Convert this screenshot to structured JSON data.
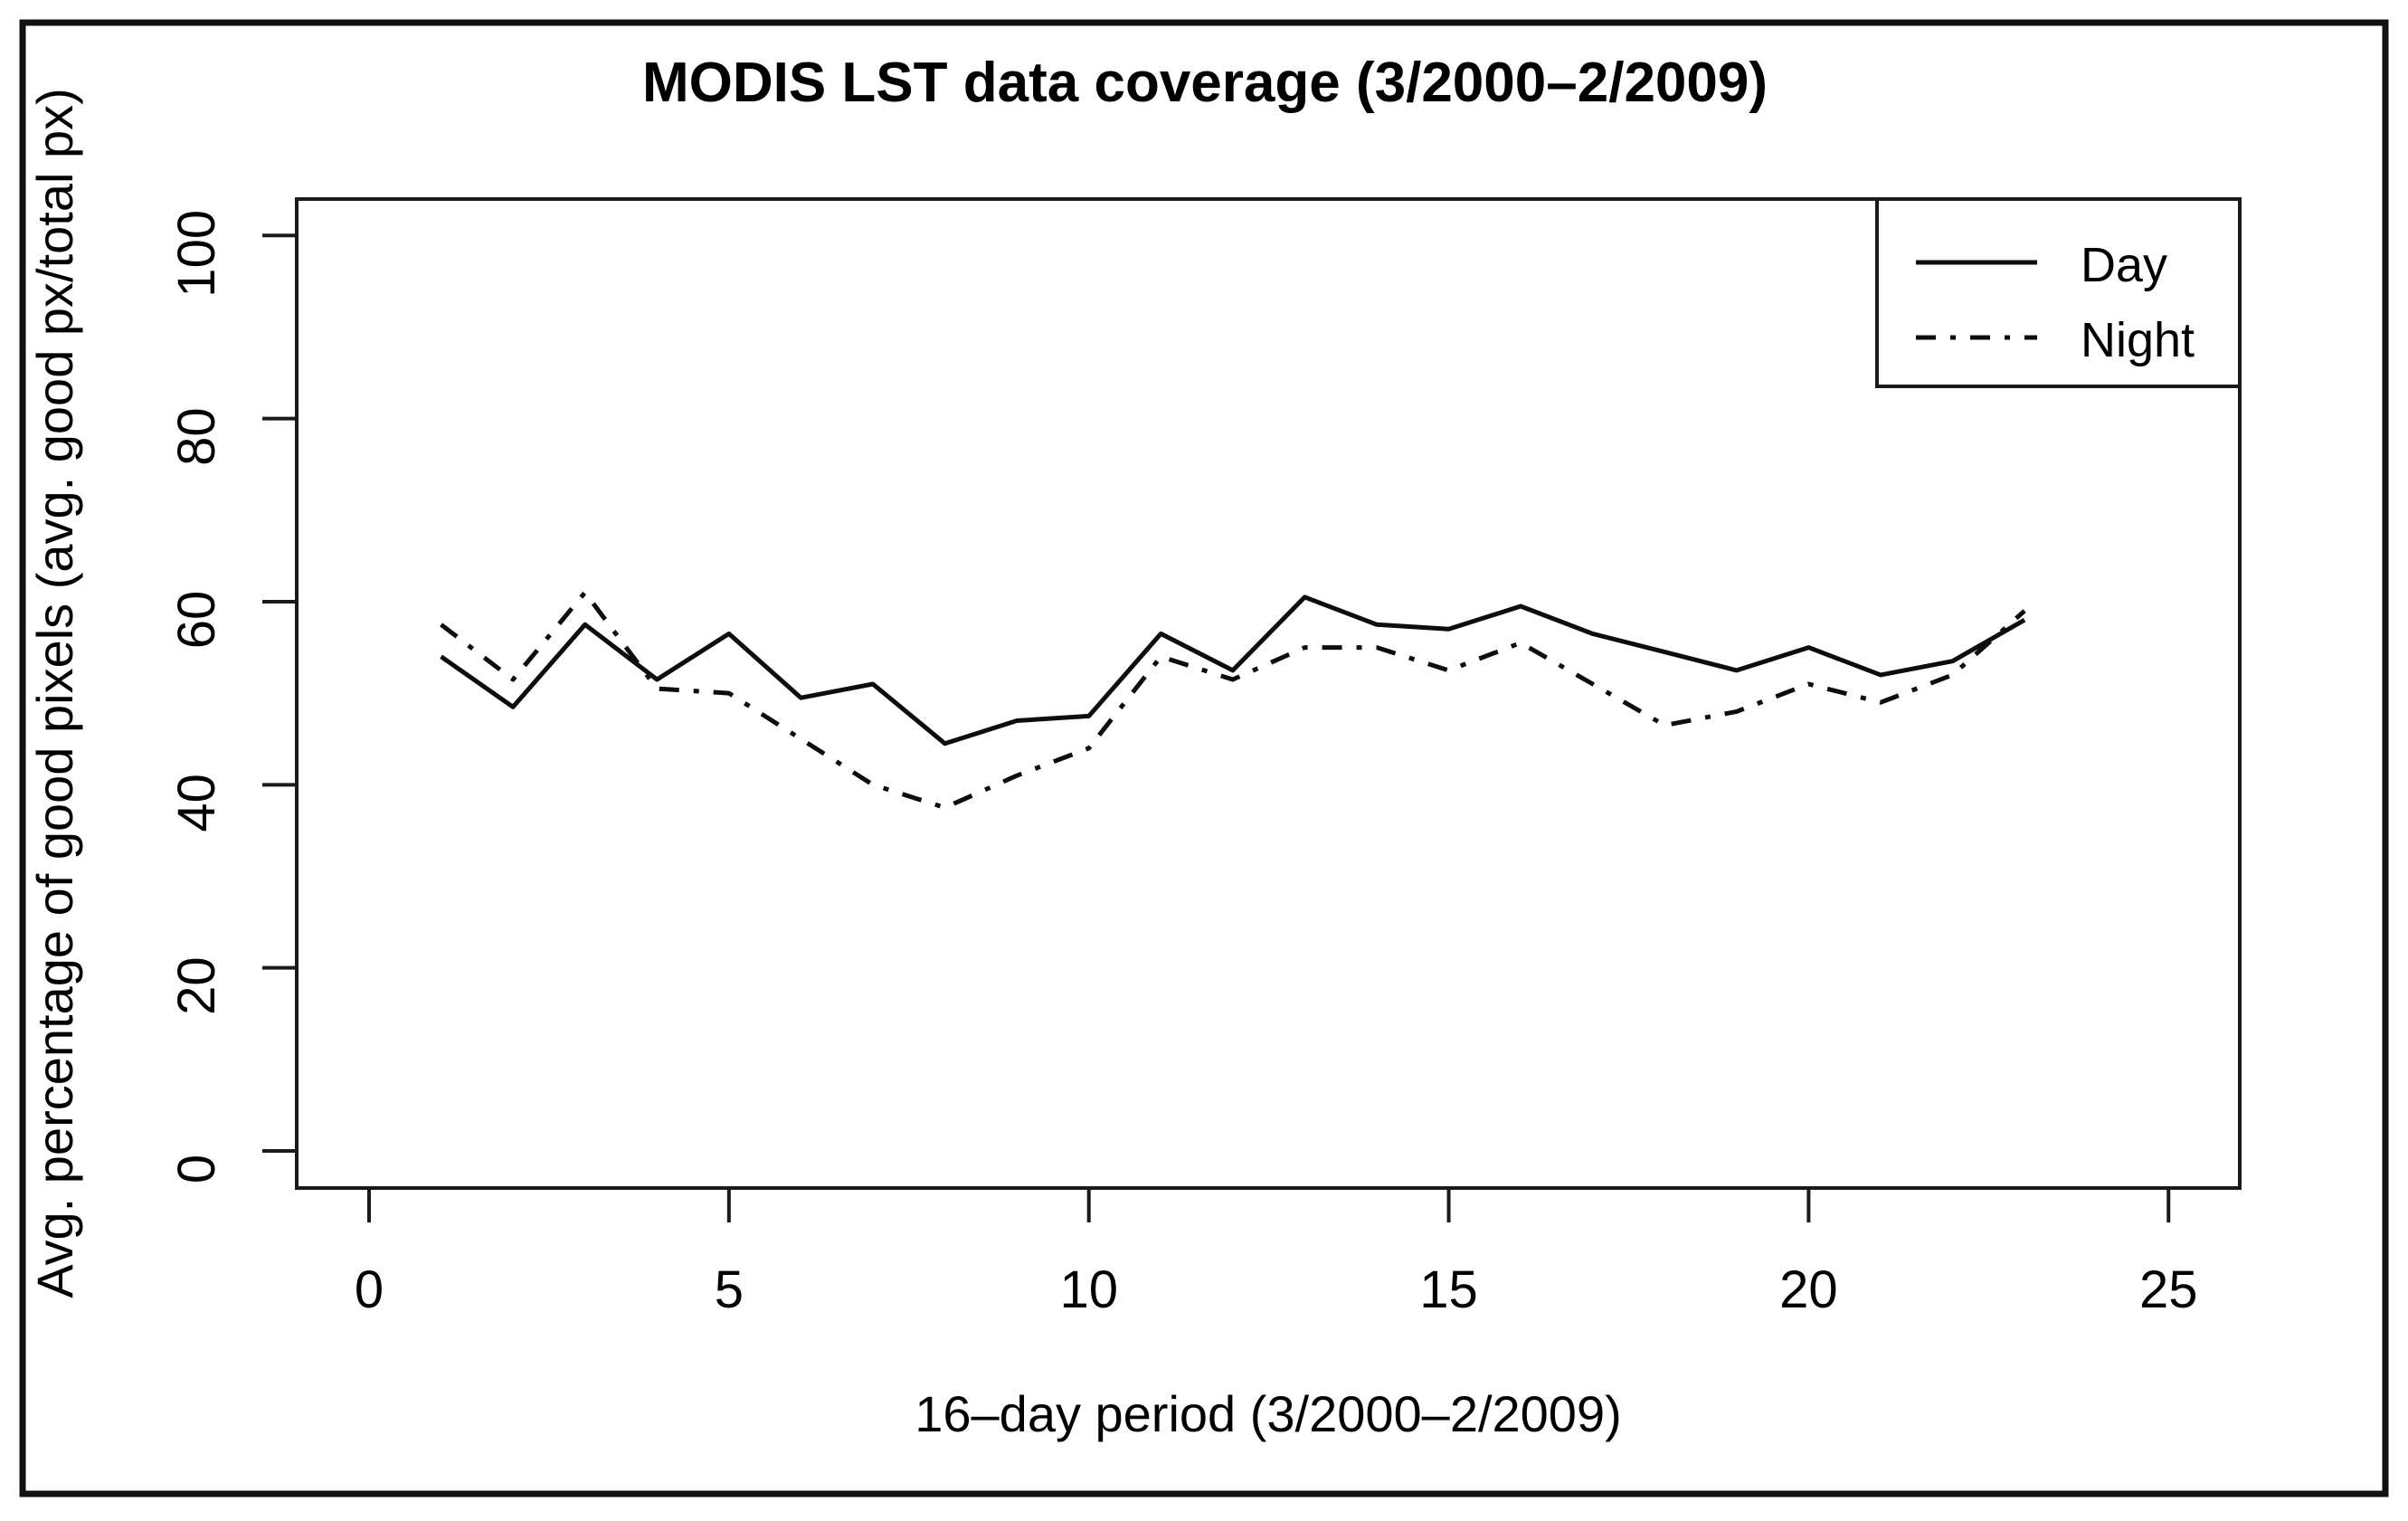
{
  "chart_data": {
    "type": "line",
    "title": "MODIS LST data coverage (3/2000–2/2009)",
    "xlabel": "16–day period (3/2000–2/2009)",
    "ylabel": "Avg. percentage of good pixels (avg. good px/total px)",
    "x": [
      1,
      2,
      3,
      4,
      5,
      6,
      7,
      8,
      9,
      10,
      11,
      12,
      13,
      14,
      15,
      16,
      17,
      18,
      19,
      20,
      21,
      22,
      23
    ],
    "series": [
      {
        "name": "Day",
        "line_style": "solid",
        "values": [
          54,
          48.5,
          57.5,
          51.5,
          56.5,
          49.5,
          51,
          44.5,
          47,
          47.5,
          56.5,
          52.5,
          60.5,
          57.5,
          57,
          59.5,
          56.5,
          54.5,
          52.5,
          55,
          52,
          53.5,
          58
        ]
      },
      {
        "name": "Night",
        "line_style": "dash-dot",
        "values": [
          57.5,
          51.5,
          61,
          50.5,
          50,
          45,
          40,
          37.5,
          41,
          44,
          54,
          51.5,
          55,
          55,
          52.5,
          55.5,
          51,
          46.5,
          48,
          51,
          49,
          52,
          59
        ]
      }
    ],
    "x_ticks": [
      0,
      5,
      10,
      15,
      20,
      25
    ],
    "y_ticks": [
      0,
      20,
      40,
      60,
      80,
      100
    ],
    "xlim": [
      -1,
      26
    ],
    "ylim": [
      -4,
      104
    ],
    "grid": false,
    "legend": {
      "position": "top-right"
    },
    "colors": {
      "line": "#000000",
      "background": "#ffffff",
      "border": "#1a1a1a"
    }
  }
}
